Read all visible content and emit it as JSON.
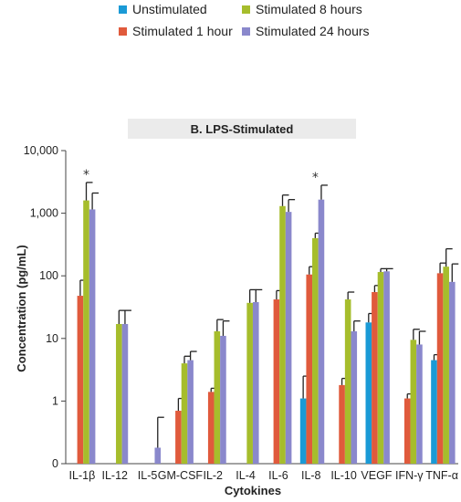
{
  "chart_data": {
    "type": "bar",
    "title": "B. LPS-Stimulated",
    "xlabel": "Cytokines",
    "ylabel": "Concentration (pg/mL)",
    "yscale": "log",
    "ylim": [
      0.1,
      10000
    ],
    "yticks": [
      {
        "value": 0.1,
        "label": "0"
      },
      {
        "value": 1,
        "label": "1"
      },
      {
        "value": 10,
        "label": "10"
      },
      {
        "value": 100,
        "label": "100"
      },
      {
        "value": 1000,
        "label": "1,000"
      },
      {
        "value": 10000,
        "label": "10,000"
      }
    ],
    "grid": false,
    "legend_position": "top",
    "categories": [
      "IL-1β",
      "IL-12",
      "IL-5",
      "GM-CSF",
      "IL-2",
      "IL-4",
      "IL-6",
      "IL-8",
      "IL-10",
      "VEGF",
      "IFN-γ",
      "TNF-α"
    ],
    "series": [
      {
        "name": "Unstimulated",
        "color": "#1a9ad6",
        "values": [
          null,
          null,
          null,
          null,
          null,
          null,
          null,
          1.1,
          null,
          18,
          null,
          4.5
        ],
        "errors": [
          null,
          null,
          null,
          null,
          null,
          null,
          null,
          2.5,
          null,
          25,
          null,
          5.5
        ]
      },
      {
        "name": "Stimulated 1 hour",
        "color": "#e05a3c",
        "values": [
          48,
          null,
          null,
          0.7,
          1.4,
          null,
          42,
          105,
          1.8,
          55,
          1.1,
          110
        ],
        "errors": [
          85,
          null,
          null,
          1.1,
          1.6,
          null,
          58,
          140,
          2.3,
          70,
          1.3,
          160
        ]
      },
      {
        "name": "Stimulated 8 hours",
        "color": "#a6bd2c",
        "values": [
          1600,
          17,
          null,
          4,
          13,
          37,
          1300,
          400,
          42,
          115,
          9.5,
          140
        ],
        "errors": [
          3100,
          28,
          null,
          5.2,
          20,
          60,
          1950,
          480,
          55,
          130,
          14,
          270
        ]
      },
      {
        "name": "Stimulated 24 hours",
        "color": "#8a88cc",
        "values": [
          1150,
          17,
          0.18,
          4.5,
          11,
          38,
          1050,
          1650,
          13,
          118,
          8,
          80
        ],
        "errors": [
          2100,
          28,
          0.55,
          6.2,
          19,
          60,
          1650,
          2800,
          19,
          130,
          13,
          155
        ]
      }
    ],
    "annotations": [
      {
        "category": "IL-1β",
        "text": "*"
      },
      {
        "category": "IL-8",
        "text": "*"
      }
    ]
  }
}
